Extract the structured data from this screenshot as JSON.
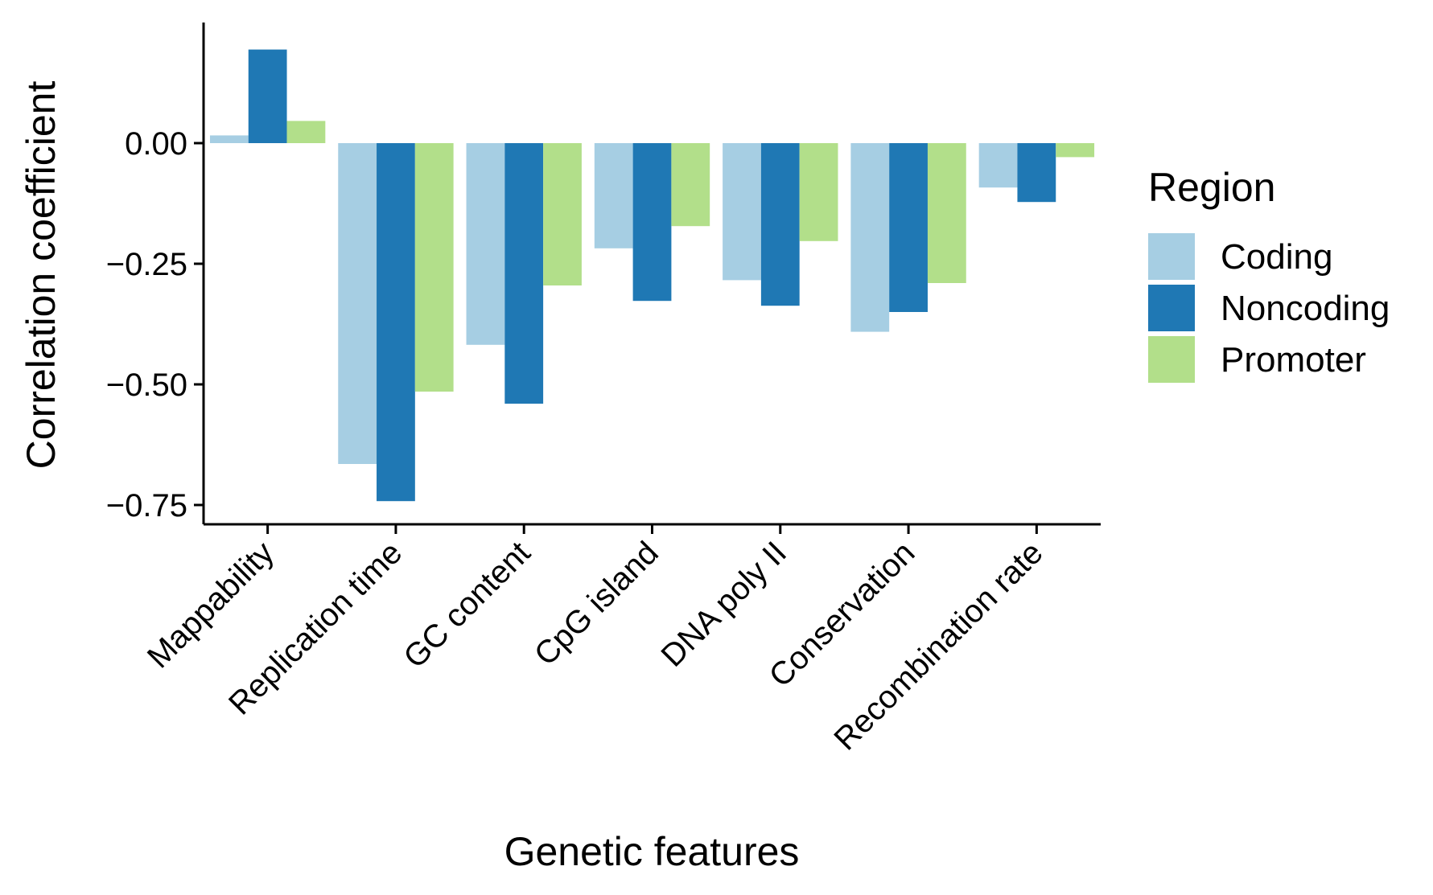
{
  "chart_data": {
    "type": "bar",
    "xlabel": "Genetic features",
    "ylabel": "Correlation coefficient",
    "ylim": [
      -0.79,
      0.25
    ],
    "yticks": [
      0.0,
      -0.25,
      -0.5,
      -0.75
    ],
    "ytick_labels": [
      "0.00",
      "−0.25",
      "−0.50",
      "−0.75"
    ],
    "categories": [
      "Mappability",
      "Replication time",
      "GC content",
      "CpG island",
      "DNA poly II",
      "Conservation",
      "Recombination rate"
    ],
    "series": [
      {
        "name": "Coding",
        "color": "#a6cee3",
        "values": [
          0.016,
          -0.665,
          -0.418,
          -0.218,
          -0.284,
          -0.391,
          -0.092
        ]
      },
      {
        "name": "Noncoding",
        "color": "#1f78b4",
        "values": [
          0.194,
          -0.742,
          -0.54,
          -0.327,
          -0.337,
          -0.35,
          -0.122
        ]
      },
      {
        "name": "Promoter",
        "color": "#b2df8a",
        "values": [
          0.046,
          -0.515,
          -0.295,
          -0.172,
          -0.203,
          -0.29,
          -0.029
        ]
      }
    ],
    "legend": {
      "title": "Region",
      "position": "right"
    },
    "grid": false
  }
}
